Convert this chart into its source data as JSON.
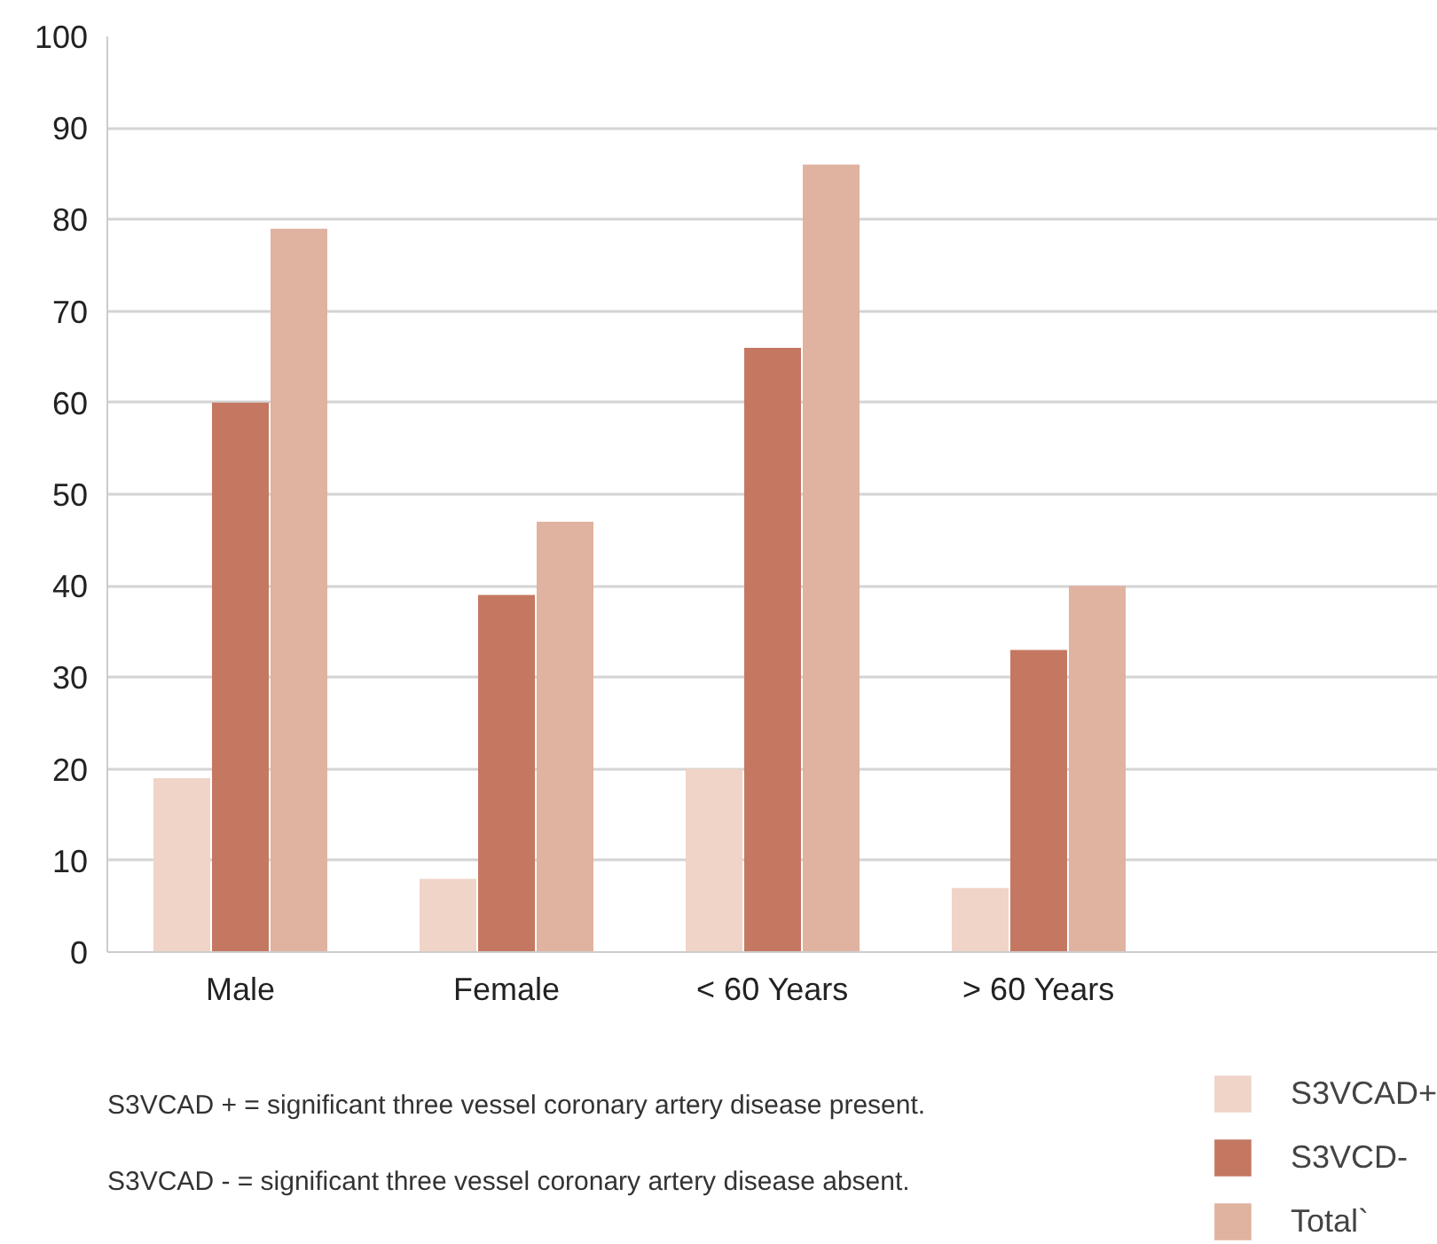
{
  "chart_data": {
    "type": "bar",
    "categories": [
      "Male",
      "Female",
      "< 60 Years",
      "> 60 Years",
      null
    ],
    "series": [
      {
        "name": "S3VCAD+",
        "color": "#f0d4c8",
        "values": [
          19,
          8,
          20,
          7,
          null
        ]
      },
      {
        "name": "S3VCD-",
        "color": "#c47862",
        "values": [
          60,
          39,
          66,
          33,
          null
        ]
      },
      {
        "name": "Total`",
        "color": "#e0b2a0",
        "values": [
          79,
          47,
          86,
          40,
          null
        ]
      }
    ],
    "ylim": [
      0,
      100
    ],
    "yticks": [
      0,
      10,
      20,
      30,
      40,
      50,
      60,
      70,
      80,
      90,
      100
    ],
    "grid": "y",
    "legend": "bottom right",
    "annotations": [
      "S3VCAD + = significant three vessel coronary artery disease present.",
      "S3VCAD - = significant three vessel coronary artery disease absent."
    ]
  }
}
